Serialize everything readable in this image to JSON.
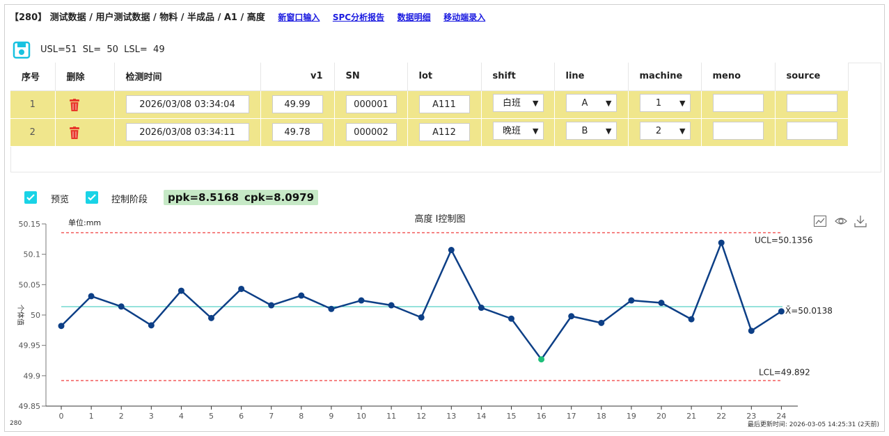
{
  "breadcrumb": {
    "text": "【280】 测试数据 / 用户测试数据 / 物料 / 半成品 / A1 / 高度",
    "links": [
      "新窗口输入",
      "SPC分析报告",
      "数据明细",
      "移动端录入"
    ]
  },
  "spec": {
    "text": "USL=51  SL=  50  LSL=  49"
  },
  "table": {
    "headers": [
      "序号",
      "删除",
      "检测时间",
      "v1",
      "SN",
      "lot",
      "shift",
      "line",
      "machine",
      "meno",
      "source"
    ],
    "rows": [
      {
        "index": "1",
        "time": "2026/03/08 03:34:04",
        "v1": "49.99",
        "sn": "000001",
        "lot": "A111",
        "shift": "白班",
        "line": "A",
        "machine": "1",
        "meno": "",
        "source": ""
      },
      {
        "index": "2",
        "time": "2026/03/08 03:34:11",
        "v1": "49.78",
        "sn": "000002",
        "lot": "A112",
        "shift": "晚班",
        "line": "B",
        "machine": "2",
        "meno": "",
        "source": ""
      }
    ]
  },
  "controls": {
    "preview_label": "预览",
    "control_stage_label": "控制阶段",
    "ppk": "ppk=8.5168",
    "cpk": "cpk=8.0979"
  },
  "chart_data": {
    "type": "line",
    "title": "高度 I控制图",
    "unit_label": "单位:mm",
    "ylabel": "个体值",
    "ylim": [
      49.85,
      50.15
    ],
    "yticks": [
      "50.15",
      "50.1",
      "50.05",
      "50",
      "49.95",
      "49.9",
      "49.85"
    ],
    "x": [
      0,
      1,
      2,
      3,
      4,
      5,
      6,
      7,
      8,
      9,
      10,
      11,
      12,
      13,
      14,
      15,
      16,
      17,
      18,
      19,
      20,
      21,
      22,
      23,
      24
    ],
    "values": [
      49.982,
      50.031,
      50.014,
      49.983,
      50.04,
      49.995,
      50.043,
      50.016,
      50.032,
      50.01,
      50.024,
      50.016,
      49.996,
      50.107,
      50.012,
      49.994,
      49.927,
      49.998,
      49.987,
      50.024,
      50.02,
      49.993,
      50.119,
      49.974,
      50.006
    ],
    "highlight_index": 16,
    "ucl": 50.1356,
    "ucl_label": "UCL=50.1356",
    "center": 50.0138,
    "center_label": "X̄=50.0138",
    "lcl": 49.892,
    "lcl_label": "LCL=49.892",
    "colors": {
      "line": "#0d3f86",
      "highlight": "#1fbf7a",
      "limits": "#f25a5a",
      "center": "#2bc5b7"
    }
  },
  "footer": {
    "left": "280",
    "right": "最后更新时间: 2026-03-05 14:25:31 (2天前)"
  }
}
